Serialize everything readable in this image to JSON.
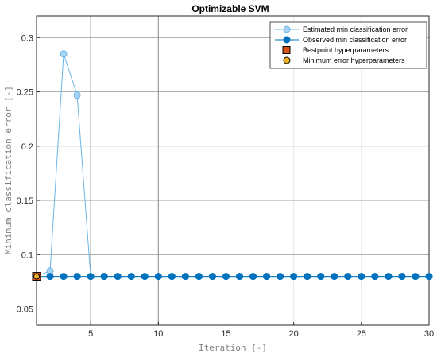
{
  "chart_data": {
    "type": "line",
    "title": "Optimizable SVM",
    "xlabel": "Iteration [-]",
    "ylabel": "Minimum classification error [-]",
    "xlim": [
      1,
      30
    ],
    "ylim": [
      0.035,
      0.32
    ],
    "xticks": [
      5,
      10,
      15,
      20,
      25,
      30
    ],
    "yticks": [
      0.05,
      0.1,
      0.15,
      0.2,
      0.25,
      0.3
    ],
    "ytick_labels": [
      "0.05",
      "0.1",
      "0.15",
      "0.2",
      "0.25",
      "0.3"
    ],
    "grid": true,
    "legend_position": "top-right",
    "series": [
      {
        "name": "Estimated min classification error",
        "color": "#6ab4e8",
        "marker_fill": "#a8d4f4",
        "x": [
          1,
          2,
          3,
          4,
          5,
          6,
          7,
          8,
          9,
          10,
          11,
          12,
          13,
          14,
          15,
          16,
          17,
          18,
          19,
          20,
          21,
          22,
          23,
          24,
          25,
          26,
          27,
          28,
          29,
          30
        ],
        "y": [
          0.08,
          0.085,
          0.285,
          0.247,
          0.08,
          0.08,
          0.08,
          0.08,
          0.08,
          0.08,
          0.08,
          0.08,
          0.08,
          0.08,
          0.08,
          0.08,
          0.08,
          0.08,
          0.08,
          0.08,
          0.08,
          0.08,
          0.08,
          0.08,
          0.08,
          0.08,
          0.08,
          0.08,
          0.08,
          0.08
        ]
      },
      {
        "name": "Observed min classification error",
        "color": "#0072bd",
        "x": [
          1,
          2,
          3,
          4,
          5,
          6,
          7,
          8,
          9,
          10,
          11,
          12,
          13,
          14,
          15,
          16,
          17,
          18,
          19,
          20,
          21,
          22,
          23,
          24,
          25,
          26,
          27,
          28,
          29,
          30
        ],
        "y": [
          0.08,
          0.08,
          0.08,
          0.08,
          0.08,
          0.08,
          0.08,
          0.08,
          0.08,
          0.08,
          0.08,
          0.08,
          0.08,
          0.08,
          0.08,
          0.08,
          0.08,
          0.08,
          0.08,
          0.08,
          0.08,
          0.08,
          0.08,
          0.08,
          0.08,
          0.08,
          0.08,
          0.08,
          0.08,
          0.08
        ]
      }
    ],
    "markers": [
      {
        "name": "Bestpoint hyperparameters",
        "shape": "square",
        "color": "#d95319",
        "x": 1,
        "y": 0.08
      },
      {
        "name": "Minimum error hyperparameters",
        "shape": "circle",
        "color": "#edb120",
        "x": 1,
        "y": 0.08
      }
    ],
    "vertical_lines": [
      5,
      10
    ],
    "legend": [
      {
        "label": "Estimated min classification error",
        "kind": "line-marker",
        "color": "#6ab4e8",
        "fill": "#a8d4f4"
      },
      {
        "label": "Observed min classification error",
        "kind": "line-marker",
        "color": "#0072bd",
        "fill": "#0072bd"
      },
      {
        "label": "Bestpoint hyperparameters",
        "kind": "square",
        "color": "#d95319",
        "fill": "#d95319"
      },
      {
        "label": "Minimum error hyperparameters",
        "kind": "circle",
        "color": "#edb120",
        "fill": "#edb120"
      }
    ]
  }
}
